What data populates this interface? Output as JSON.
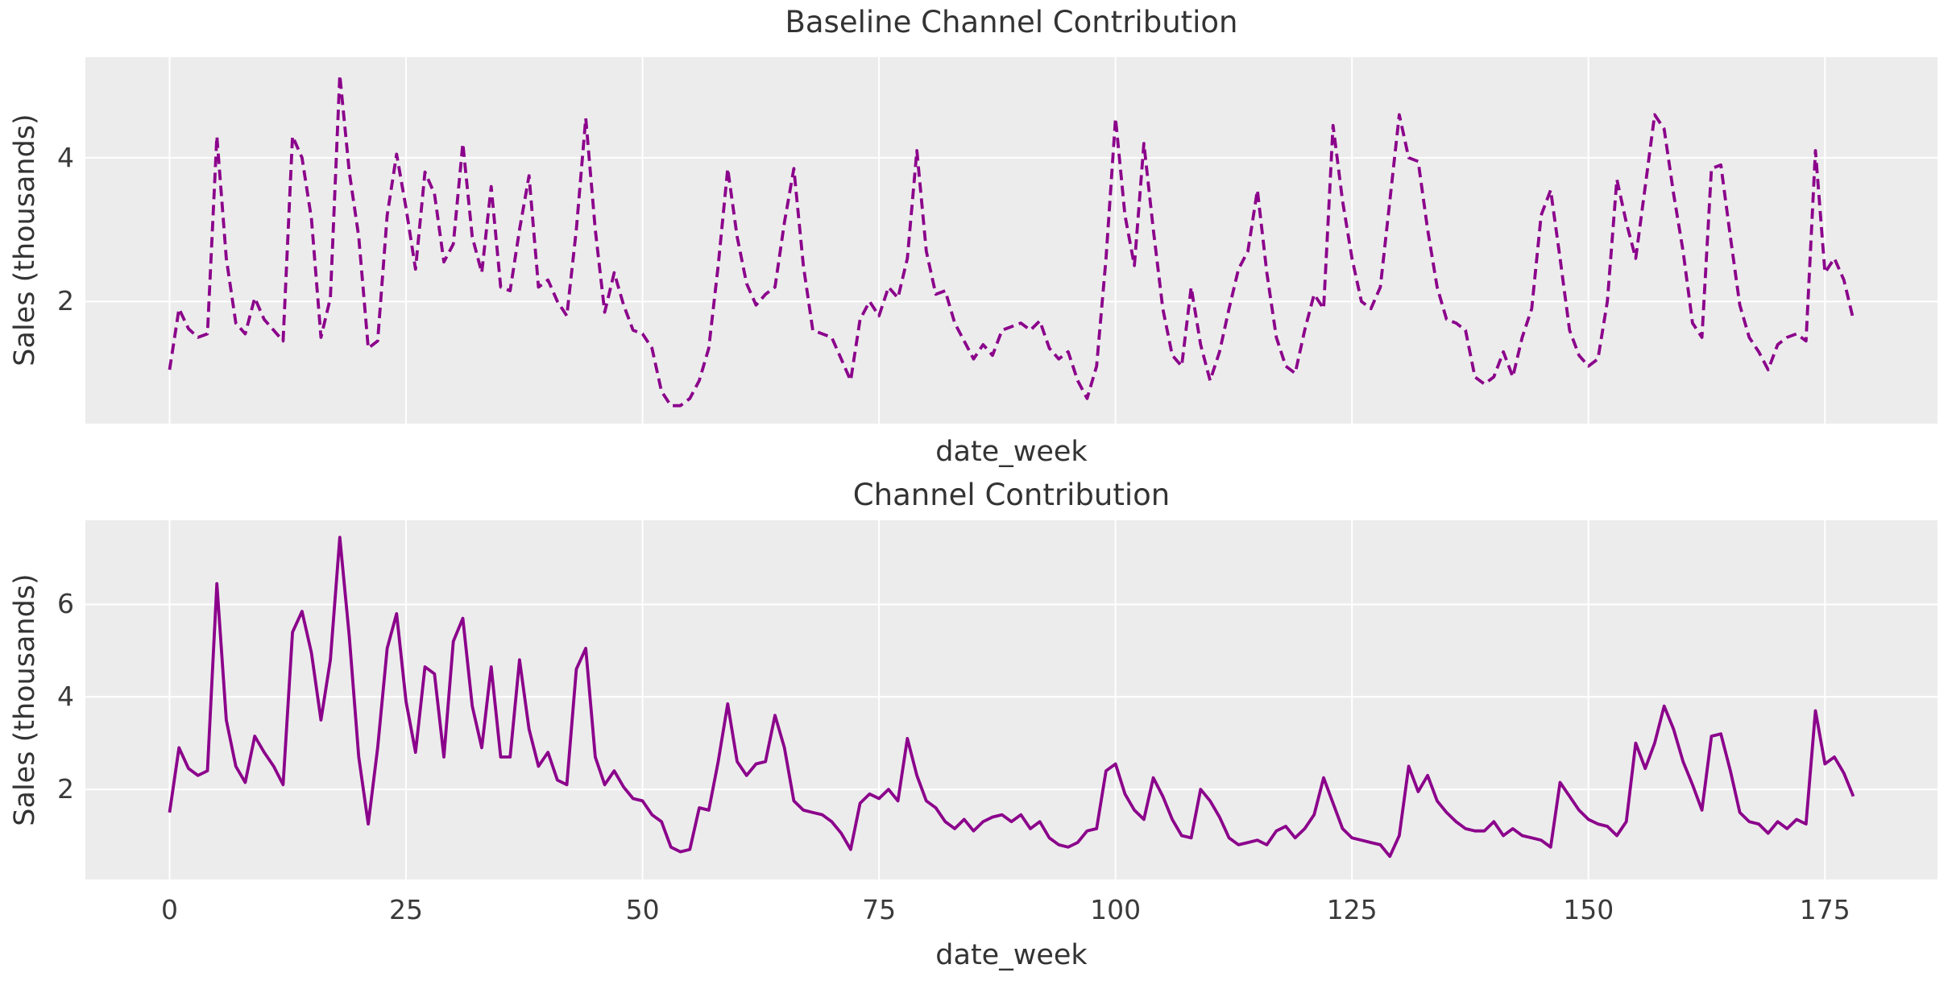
{
  "figure": {
    "background_color": "#ffffff",
    "axes_background_color": "#ececec",
    "grid_color": "#ffffff",
    "text_color": "#333333",
    "tick_text_color": "#3a3a3a",
    "line_color": "#8b008b"
  },
  "chart_data": [
    {
      "type": "line",
      "title": "Baseline Channel Contribution",
      "xlabel": "date_week",
      "ylabel": "Sales (thousands)",
      "legend": "none",
      "grid": true,
      "line_style": "dashed",
      "line_color": "#8b008b",
      "x_start": 0,
      "x_step": 1,
      "n_points": 179,
      "xlim": [
        -8.9,
        186.9
      ],
      "ylim": [
        0.3,
        5.4
      ],
      "xticks": [
        0,
        25,
        50,
        75,
        100,
        125,
        150,
        175
      ],
      "xtick_labels": [],
      "yticks": [
        2,
        4
      ],
      "ytick_labels": [
        "2",
        "4"
      ],
      "values": [
        1.05,
        1.9,
        1.62,
        1.5,
        1.55,
        4.3,
        2.6,
        1.7,
        1.55,
        2.05,
        1.75,
        1.6,
        1.45,
        4.3,
        4.0,
        3.15,
        1.5,
        2.05,
        5.15,
        3.8,
        2.9,
        1.35,
        1.45,
        3.2,
        4.05,
        3.3,
        2.45,
        3.8,
        3.5,
        2.55,
        2.8,
        4.2,
        2.9,
        2.4,
        3.6,
        2.2,
        2.15,
        3.0,
        3.75,
        2.2,
        2.3,
        2.0,
        1.8,
        3.0,
        4.55,
        3.0,
        1.85,
        2.4,
        1.95,
        1.6,
        1.55,
        1.35,
        0.75,
        0.55,
        0.55,
        0.65,
        0.9,
        1.35,
        2.5,
        3.85,
        2.9,
        2.25,
        1.95,
        2.1,
        2.2,
        3.1,
        3.85,
        2.5,
        1.6,
        1.55,
        1.5,
        1.2,
        0.9,
        1.75,
        2.0,
        1.8,
        2.2,
        2.05,
        2.6,
        4.1,
        2.7,
        2.1,
        2.15,
        1.7,
        1.45,
        1.2,
        1.4,
        1.25,
        1.6,
        1.65,
        1.7,
        1.6,
        1.73,
        1.35,
        1.2,
        1.3,
        0.9,
        0.65,
        1.1,
        2.6,
        4.55,
        3.2,
        2.5,
        4.2,
        3.0,
        1.9,
        1.25,
        1.1,
        2.2,
        1.4,
        0.9,
        1.3,
        1.9,
        2.45,
        2.7,
        3.55,
        2.4,
        1.5,
        1.1,
        1.0,
        1.6,
        2.1,
        1.9,
        4.45,
        3.4,
        2.6,
        2.0,
        1.9,
        2.2,
        3.4,
        4.6,
        4.0,
        3.95,
        3.0,
        2.2,
        1.75,
        1.7,
        1.6,
        0.95,
        0.85,
        0.95,
        1.3,
        0.95,
        1.5,
        1.9,
        3.2,
        3.55,
        2.6,
        1.6,
        1.25,
        1.1,
        1.2,
        2.0,
        3.7,
        3.1,
        2.6,
        3.6,
        4.6,
        4.4,
        3.5,
        2.7,
        1.7,
        1.5,
        3.85,
        3.9,
        2.9,
        1.95,
        1.5,
        1.3,
        1.05,
        1.4,
        1.5,
        1.55,
        1.45,
        4.1,
        2.4,
        2.6,
        2.3,
        1.75
      ]
    },
    {
      "type": "line",
      "title": "Channel Contribution",
      "xlabel": "date_week",
      "ylabel": "Sales (thousands)",
      "legend": "none",
      "grid": true,
      "line_style": "solid",
      "line_color": "#8b008b",
      "x_start": 0,
      "x_step": 1,
      "n_points": 179,
      "xlim": [
        -8.9,
        186.9
      ],
      "ylim": [
        0.05,
        7.82
      ],
      "xticks": [
        0,
        25,
        50,
        75,
        100,
        125,
        150,
        175
      ],
      "xtick_labels": [
        "0",
        "25",
        "50",
        "75",
        "100",
        "125",
        "150",
        "175"
      ],
      "yticks": [
        2,
        4,
        6
      ],
      "ytick_labels": [
        "2",
        "4",
        "6"
      ],
      "values": [
        1.5,
        2.9,
        2.45,
        2.3,
        2.4,
        6.45,
        3.5,
        2.5,
        2.15,
        3.15,
        2.8,
        2.5,
        2.1,
        5.4,
        5.85,
        4.95,
        3.5,
        4.8,
        7.45,
        5.3,
        2.7,
        1.25,
        2.9,
        5.05,
        5.8,
        3.9,
        2.8,
        4.65,
        4.5,
        2.7,
        5.2,
        5.7,
        3.8,
        2.9,
        4.65,
        2.7,
        2.7,
        4.8,
        3.3,
        2.5,
        2.8,
        2.2,
        2.1,
        4.6,
        5.05,
        2.7,
        2.1,
        2.4,
        2.05,
        1.8,
        1.75,
        1.45,
        1.3,
        0.75,
        0.65,
        0.7,
        1.6,
        1.55,
        2.6,
        3.85,
        2.6,
        2.3,
        2.55,
        2.6,
        3.6,
        2.9,
        1.75,
        1.55,
        1.5,
        1.45,
        1.3,
        1.05,
        0.7,
        1.7,
        1.9,
        1.8,
        2.0,
        1.75,
        3.1,
        2.3,
        1.75,
        1.6,
        1.3,
        1.15,
        1.35,
        1.1,
        1.3,
        1.4,
        1.45,
        1.3,
        1.45,
        1.15,
        1.3,
        0.95,
        0.8,
        0.75,
        0.85,
        1.1,
        1.15,
        2.4,
        2.55,
        1.9,
        1.55,
        1.35,
        2.25,
        1.85,
        1.35,
        1.0,
        0.95,
        2.0,
        1.75,
        1.4,
        0.95,
        0.8,
        0.85,
        0.9,
        0.8,
        1.1,
        1.2,
        0.95,
        1.15,
        1.45,
        2.25,
        1.7,
        1.15,
        0.95,
        0.9,
        0.85,
        0.8,
        0.55,
        1.0,
        2.5,
        1.95,
        2.3,
        1.75,
        1.5,
        1.3,
        1.15,
        1.1,
        1.1,
        1.3,
        1.0,
        1.15,
        1.0,
        0.95,
        0.9,
        0.75,
        2.15,
        1.85,
        1.55,
        1.35,
        1.25,
        1.2,
        1.0,
        1.3,
        3.0,
        2.45,
        3.0,
        3.8,
        3.3,
        2.6,
        2.1,
        1.55,
        3.15,
        3.2,
        2.4,
        1.5,
        1.3,
        1.25,
        1.05,
        1.3,
        1.15,
        1.35,
        1.25,
        3.7,
        2.55,
        2.7,
        2.35,
        1.85
      ]
    }
  ]
}
